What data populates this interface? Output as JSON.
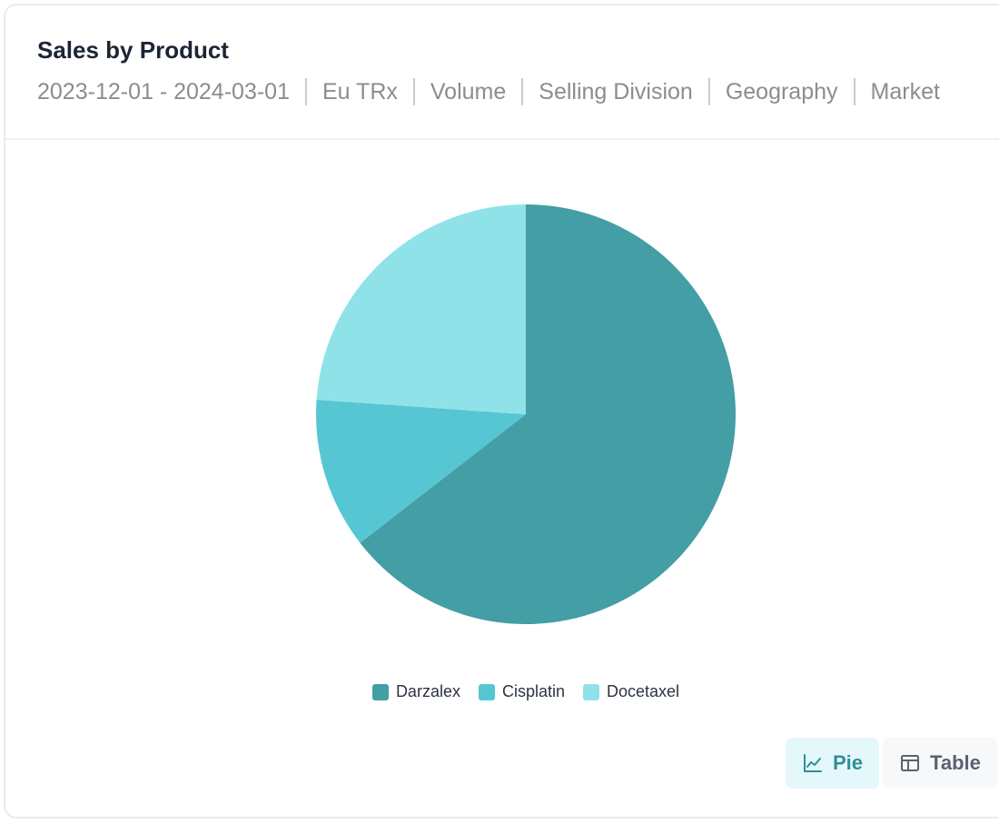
{
  "header": {
    "title": "Sales by Product",
    "filters": [
      "2023-12-01 - 2024-03-01",
      "Eu TRx",
      "Volume",
      "Selling Division",
      "Geography",
      "Market"
    ]
  },
  "chart_data": {
    "type": "pie",
    "title": "Sales by Product",
    "slices": [
      {
        "label": "Darzalex",
        "value": 64.5,
        "color": "#439ea6"
      },
      {
        "label": "Cisplatin",
        "value": 11.6,
        "color": "#57c6d3"
      },
      {
        "label": "Docetaxel",
        "value": 23.9,
        "color": "#90e2e9"
      }
    ],
    "legend": "bottom-center"
  },
  "view_toggle": {
    "options": [
      {
        "label": "Pie",
        "icon": "line-chart-icon",
        "active": true
      },
      {
        "label": "Table",
        "icon": "table-icon",
        "active": false
      }
    ]
  }
}
